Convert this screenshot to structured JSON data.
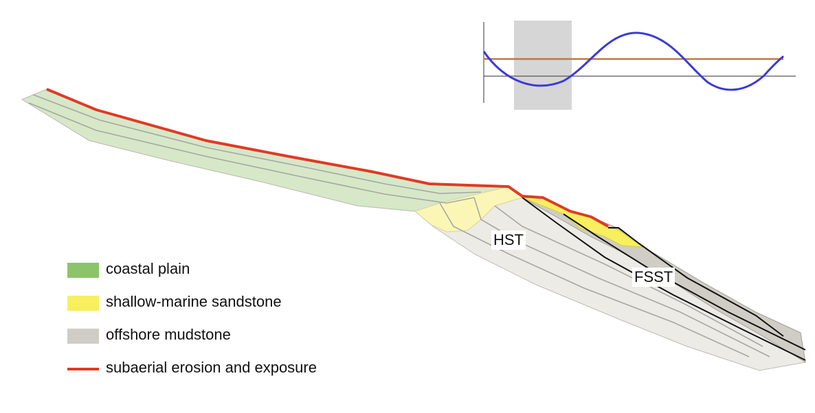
{
  "legend": {
    "items": [
      {
        "label": "coastal plain",
        "color": "#8cc46a",
        "kind": "box"
      },
      {
        "label": "shallow-marine sandstone",
        "color": "#f7ef5e",
        "kind": "box"
      },
      {
        "label": "offshore mudstone",
        "color": "#cfcdc5",
        "kind": "box"
      },
      {
        "label": "subaerial erosion and exposure",
        "color": "#e03a26",
        "kind": "line"
      }
    ]
  },
  "labels": {
    "hst": "HST",
    "fsst": "FSST"
  },
  "colors": {
    "coastal_plain_fill": "#d6e8c8",
    "sand_light_fill": "#fbf6b6",
    "sand_strong_fill": "#f7ef5e",
    "mud_light_fill": "#ecebe6",
    "mud_dark_fill": "#cfcdc5",
    "erosion_line": "#e03a26",
    "sea_level_curve": "#3a3ad8",
    "inset_horizontal_line": "#b97a4a",
    "inset_highlight": "#d6d6d6"
  }
}
